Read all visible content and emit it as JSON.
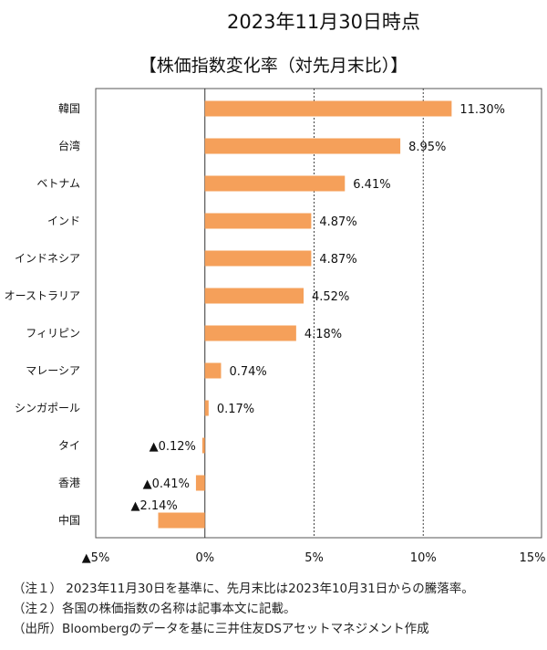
{
  "header": {
    "date": "2023年11月30日時点",
    "title": "【株価指数変化率（対先月末比）】"
  },
  "chart_data": {
    "type": "bar",
    "orientation": "horizontal",
    "categories": [
      "韓国",
      "台湾",
      "ベトナム",
      "インド",
      "インドネシア",
      "オーストラリア",
      "フィリピン",
      "マレーシア",
      "シンガポール",
      "タイ",
      "香港",
      "中国"
    ],
    "values": [
      11.3,
      8.95,
      6.41,
      4.87,
      4.87,
      4.52,
      4.18,
      0.74,
      0.17,
      -0.12,
      -0.41,
      -2.14
    ],
    "value_labels": [
      "11.30%",
      "8.95%",
      "6.41%",
      "4.87%",
      "4.87%",
      "4.52%",
      "4.18%",
      "0.74%",
      "0.17%",
      "▲0.12%",
      "▲0.41%",
      "▲2.14%"
    ],
    "xlim": [
      -5,
      15
    ],
    "xticks": [
      -5,
      0,
      5,
      10,
      15
    ],
    "xtick_labels": [
      "▲5%",
      "0%",
      "5%",
      "10%",
      "15%"
    ],
    "gridlines": [
      5,
      10
    ],
    "bar_color": "#f5a05a",
    "title": "【株価指数変化率（対先月末比）】"
  },
  "notes": [
    "（注１） 2023年11月30日を基準に、先月末比は2023年10月31日からの騰落率。",
    "（注２）各国の株価指数の名称は記事本文に記載。",
    "（出所）Bloombergのデータを基に三井住友DSアセットマネジメント作成"
  ]
}
